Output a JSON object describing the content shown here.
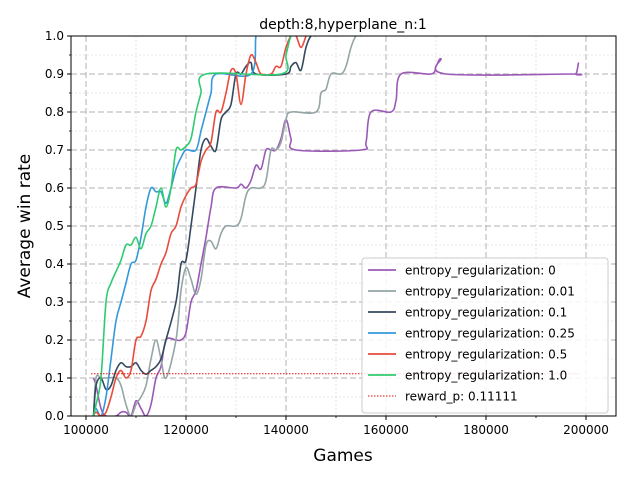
{
  "chart_data": {
    "type": "line",
    "title": "depth:8,hyperplane_n:1",
    "xlabel": "Games",
    "ylabel": "Average win rate",
    "xlim": [
      97000,
      206000
    ],
    "ylim": [
      0.0,
      1.0
    ],
    "xticks": [
      100000,
      120000,
      140000,
      160000,
      180000,
      200000
    ],
    "xtick_labels": [
      "100000",
      "120000",
      "140000",
      "160000",
      "180000",
      "200000"
    ],
    "yticks": [
      0.0,
      0.1,
      0.2,
      0.3,
      0.4,
      0.5,
      0.6,
      0.7,
      0.8,
      0.9,
      1.0
    ],
    "ytick_labels": [
      "0.0",
      "0.1",
      "0.2",
      "0.3",
      "0.4",
      "0.5",
      "0.6",
      "0.7",
      "0.8",
      "0.9",
      "1.0"
    ],
    "grid": true,
    "legend_position": "lower-right",
    "series": [
      {
        "name": "entropy_regularization: 0",
        "color": "#9b59b6",
        "points": [
          [
            101500,
            0.1
          ],
          [
            102000,
            0.08
          ],
          [
            103000,
            0.02
          ],
          [
            104000,
            0.0
          ],
          [
            106000,
            0.0
          ],
          [
            107000,
            0.01
          ],
          [
            108000,
            0.01
          ],
          [
            109000,
            0.0
          ],
          [
            110000,
            0.04
          ],
          [
            111000,
            0.02
          ],
          [
            112000,
            0.0
          ],
          [
            113000,
            0.03
          ],
          [
            114000,
            0.1
          ],
          [
            115000,
            0.13
          ],
          [
            116000,
            0.2
          ],
          [
            118000,
            0.2
          ],
          [
            119000,
            0.2
          ],
          [
            120000,
            0.22
          ],
          [
            121000,
            0.3
          ],
          [
            122000,
            0.33
          ],
          [
            123000,
            0.4
          ],
          [
            124000,
            0.47
          ],
          [
            125000,
            0.55
          ],
          [
            126000,
            0.6
          ],
          [
            130000,
            0.6
          ],
          [
            131000,
            0.61
          ],
          [
            132000,
            0.6
          ],
          [
            133000,
            0.62
          ],
          [
            134000,
            0.66
          ],
          [
            135000,
            0.65
          ],
          [
            136000,
            0.7
          ],
          [
            137000,
            0.7
          ],
          [
            138000,
            0.7
          ],
          [
            139000,
            0.73
          ],
          [
            140000,
            0.78
          ],
          [
            141000,
            0.73
          ],
          [
            142000,
            0.7
          ],
          [
            155000,
            0.7
          ],
          [
            156000,
            0.72
          ],
          [
            157000,
            0.8
          ],
          [
            161000,
            0.8
          ],
          [
            162000,
            0.83
          ],
          [
            163000,
            0.9
          ],
          [
            169000,
            0.9
          ],
          [
            170000,
            0.92
          ],
          [
            171000,
            0.94
          ],
          [
            172000,
            0.9
          ],
          [
            197000,
            0.9
          ],
          [
            198000,
            0.9
          ],
          [
            198500,
            0.93
          ]
        ]
      },
      {
        "name": "entropy_regularization: 0.01",
        "color": "#95a5a6",
        "points": [
          [
            101500,
            0.0
          ],
          [
            102000,
            0.1
          ],
          [
            103000,
            0.1
          ],
          [
            104000,
            0.1
          ],
          [
            106000,
            0.1
          ],
          [
            107000,
            0.08
          ],
          [
            108000,
            0.03
          ],
          [
            109000,
            0.0
          ],
          [
            110000,
            0.03
          ],
          [
            111000,
            0.05
          ],
          [
            112000,
            0.08
          ],
          [
            113000,
            0.15
          ],
          [
            114000,
            0.2
          ],
          [
            115000,
            0.15
          ],
          [
            116000,
            0.1
          ],
          [
            118000,
            0.2
          ],
          [
            119000,
            0.33
          ],
          [
            120000,
            0.39
          ],
          [
            121000,
            0.36
          ],
          [
            122000,
            0.32
          ],
          [
            123000,
            0.36
          ],
          [
            124000,
            0.45
          ],
          [
            125000,
            0.46
          ],
          [
            126000,
            0.44
          ],
          [
            127000,
            0.48
          ],
          [
            128000,
            0.5
          ],
          [
            130000,
            0.5
          ],
          [
            131000,
            0.52
          ],
          [
            132000,
            0.58
          ],
          [
            133000,
            0.6
          ],
          [
            135000,
            0.6
          ],
          [
            136000,
            0.62
          ],
          [
            137000,
            0.7
          ],
          [
            138000,
            0.7
          ],
          [
            139000,
            0.72
          ],
          [
            140000,
            0.78
          ],
          [
            141000,
            0.8
          ],
          [
            146000,
            0.8
          ],
          [
            147000,
            0.85
          ],
          [
            148000,
            0.86
          ],
          [
            149000,
            0.9
          ],
          [
            151000,
            0.9
          ],
          [
            152000,
            0.92
          ],
          [
            153000,
            0.97
          ],
          [
            154000,
            1.0
          ],
          [
            155000,
            1.0
          ]
        ]
      },
      {
        "name": "entropy_regularization: 0.1",
        "color": "#34495e",
        "points": [
          [
            101500,
            0.0
          ],
          [
            102000,
            0.08
          ],
          [
            103000,
            0.1
          ],
          [
            104000,
            0.07
          ],
          [
            105000,
            0.08
          ],
          [
            106000,
            0.12
          ],
          [
            107000,
            0.14
          ],
          [
            108000,
            0.13
          ],
          [
            109000,
            0.13
          ],
          [
            110000,
            0.14
          ],
          [
            111000,
            0.12
          ],
          [
            112000,
            0.11
          ],
          [
            113000,
            0.12
          ],
          [
            114000,
            0.13
          ],
          [
            115000,
            0.15
          ],
          [
            116000,
            0.2
          ],
          [
            118000,
            0.3
          ],
          [
            119000,
            0.4
          ],
          [
            120000,
            0.41
          ],
          [
            121000,
            0.5
          ],
          [
            122000,
            0.6
          ],
          [
            123000,
            0.7
          ],
          [
            124000,
            0.73
          ],
          [
            125000,
            0.71
          ],
          [
            126000,
            0.7
          ],
          [
            127000,
            0.78
          ],
          [
            128000,
            0.8
          ],
          [
            129000,
            0.82
          ],
          [
            130000,
            0.9
          ],
          [
            131000,
            0.9
          ],
          [
            132000,
            0.92
          ],
          [
            133000,
            0.93
          ],
          [
            134000,
            0.9
          ],
          [
            140000,
            0.9
          ],
          [
            141000,
            0.92
          ],
          [
            142000,
            0.93
          ],
          [
            143000,
            0.91
          ],
          [
            144000,
            0.97
          ],
          [
            145000,
            1.0
          ],
          [
            146000,
            1.0
          ]
        ]
      },
      {
        "name": "entropy_regularization: 0.25",
        "color": "#3498db",
        "points": [
          [
            101500,
            0.0
          ],
          [
            102000,
            0.02
          ],
          [
            103000,
            0.0
          ],
          [
            104000,
            0.05
          ],
          [
            105000,
            0.15
          ],
          [
            106000,
            0.25
          ],
          [
            107000,
            0.3
          ],
          [
            108000,
            0.35
          ],
          [
            109000,
            0.4
          ],
          [
            110000,
            0.41
          ],
          [
            111000,
            0.47
          ],
          [
            112000,
            0.55
          ],
          [
            113000,
            0.6
          ],
          [
            114000,
            0.59
          ],
          [
            115000,
            0.59
          ],
          [
            116000,
            0.56
          ],
          [
            117000,
            0.6
          ],
          [
            118000,
            0.65
          ],
          [
            119000,
            0.68
          ],
          [
            120000,
            0.7
          ],
          [
            122000,
            0.7
          ],
          [
            123000,
            0.75
          ],
          [
            124000,
            0.8
          ],
          [
            125000,
            0.85
          ],
          [
            126000,
            0.9
          ],
          [
            133000,
            0.9
          ],
          [
            134000,
            1.0
          ],
          [
            135000,
            1.0
          ]
        ]
      },
      {
        "name": "entropy_regularization: 0.5",
        "color": "#e74c3c",
        "points": [
          [
            101500,
            0.0
          ],
          [
            102000,
            0.01
          ],
          [
            103000,
            0.0
          ],
          [
            104000,
            0.01
          ],
          [
            105000,
            0.05
          ],
          [
            106000,
            0.1
          ],
          [
            107000,
            0.12
          ],
          [
            108000,
            0.1
          ],
          [
            109000,
            0.12
          ],
          [
            110000,
            0.2
          ],
          [
            111000,
            0.21
          ],
          [
            112000,
            0.25
          ],
          [
            113000,
            0.33
          ],
          [
            114000,
            0.36
          ],
          [
            115000,
            0.4
          ],
          [
            116000,
            0.43
          ],
          [
            117000,
            0.48
          ],
          [
            118000,
            0.5
          ],
          [
            119000,
            0.55
          ],
          [
            120000,
            0.58
          ],
          [
            121000,
            0.6
          ],
          [
            122000,
            0.61
          ],
          [
            123000,
            0.67
          ],
          [
            124000,
            0.7
          ],
          [
            125000,
            0.72
          ],
          [
            126000,
            0.8
          ],
          [
            127000,
            0.8
          ],
          [
            128000,
            0.85
          ],
          [
            129000,
            0.91
          ],
          [
            130000,
            0.9
          ],
          [
            131000,
            0.82
          ],
          [
            132000,
            0.9
          ],
          [
            133000,
            0.95
          ],
          [
            134000,
            0.93
          ],
          [
            135000,
            0.9
          ],
          [
            137000,
            0.9
          ],
          [
            138000,
            0.92
          ],
          [
            139000,
            0.92
          ],
          [
            140000,
            0.97
          ],
          [
            141000,
            1.0
          ],
          [
            142000,
            1.0
          ],
          [
            143000,
            0.97
          ],
          [
            144000,
            1.0
          ]
        ]
      },
      {
        "name": "entropy_regularization: 1.0",
        "color": "#2ecc71",
        "points": [
          [
            101500,
            0.0
          ],
          [
            102000,
            0.03
          ],
          [
            103000,
            0.1
          ],
          [
            104000,
            0.3
          ],
          [
            105000,
            0.35
          ],
          [
            106000,
            0.38
          ],
          [
            107000,
            0.41
          ],
          [
            108000,
            0.45
          ],
          [
            109000,
            0.45
          ],
          [
            110000,
            0.47
          ],
          [
            111000,
            0.44
          ],
          [
            112000,
            0.48
          ],
          [
            113000,
            0.5
          ],
          [
            114000,
            0.55
          ],
          [
            115000,
            0.6
          ],
          [
            116000,
            0.55
          ],
          [
            117000,
            0.6
          ],
          [
            118000,
            0.7
          ],
          [
            119000,
            0.7
          ],
          [
            120000,
            0.71
          ],
          [
            121000,
            0.73
          ],
          [
            122000,
            0.8
          ],
          [
            123000,
            0.85
          ],
          [
            124000,
            0.9
          ],
          [
            139000,
            0.9
          ],
          [
            140000,
            0.95
          ],
          [
            141000,
            1.0
          ],
          [
            142000,
            1.0
          ]
        ]
      },
      {
        "name": "reward_p: 0.11111",
        "color": "#dd1111",
        "dashed": true,
        "points": [
          [
            101000,
            0.11111
          ],
          [
            198500,
            0.11111
          ]
        ]
      }
    ]
  }
}
